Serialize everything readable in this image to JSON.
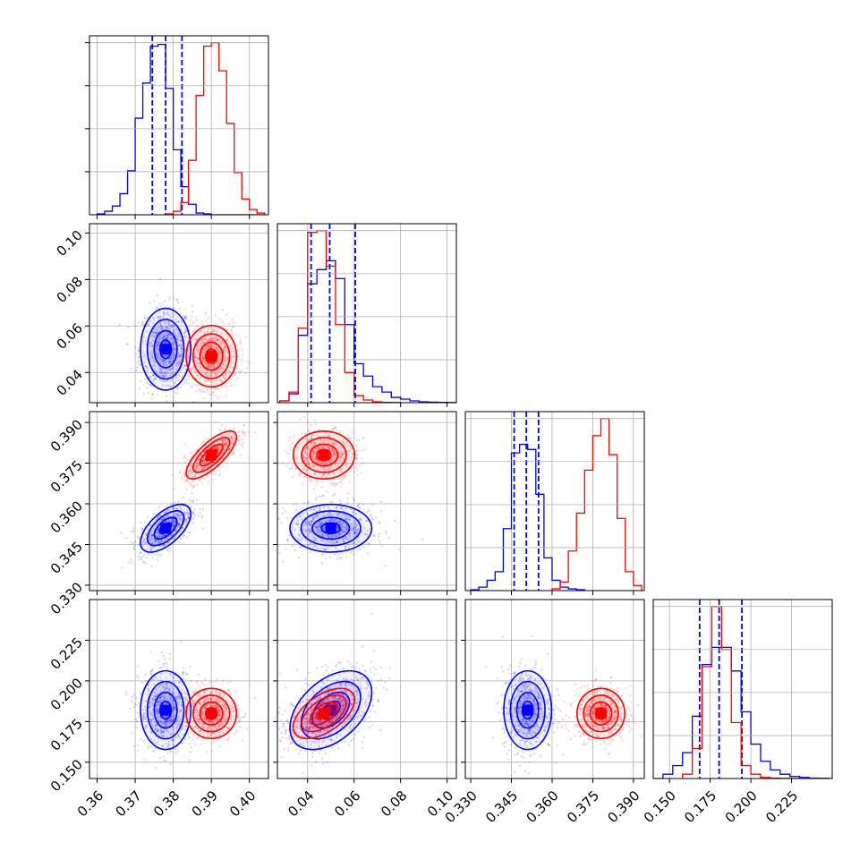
{
  "chart_data": {
    "type": "corner",
    "title": "",
    "grid": true,
    "legend": "none",
    "colors": {
      "series_a": "#0000ff",
      "series_b": "#ff0000"
    },
    "parameters": [
      {
        "index": 0,
        "label": "",
        "range": [
          0.358,
          0.405
        ],
        "ticks": [
          0.36,
          0.37,
          0.38,
          0.39,
          0.4
        ],
        "tick_labels": [
          "0.36",
          "0.37",
          "0.38",
          "0.39",
          "0.40"
        ]
      },
      {
        "index": 1,
        "label": "",
        "range": [
          0.027,
          0.104
        ],
        "ticks": [
          0.04,
          0.06,
          0.08,
          0.1
        ],
        "tick_labels": [
          "0.04",
          "0.06",
          "0.08",
          "0.10"
        ]
      },
      {
        "index": 2,
        "label": "",
        "range": [
          0.328,
          0.394
        ],
        "ticks": [
          0.33,
          0.345,
          0.36,
          0.375,
          0.39
        ],
        "tick_labels": [
          "0.330",
          "0.345",
          "0.360",
          "0.375",
          "0.390"
        ]
      },
      {
        "index": 3,
        "label": "",
        "range": [
          0.14,
          0.25
        ],
        "ticks": [
          0.15,
          0.175,
          0.2,
          0.225
        ],
        "tick_labels": [
          "0.150",
          "0.175",
          "0.200",
          "0.225"
        ]
      }
    ],
    "series": [
      {
        "color": "#0000ff",
        "quantile_lines": true,
        "means": [
          0.378,
          0.05,
          0.351,
          0.182
        ],
        "sigmas": [
          0.003,
          0.008,
          0.004,
          0.011
        ],
        "correlations": {
          "1-0": 0.0,
          "2-0": 0.6,
          "2-1": 0.0,
          "3-0": 0.0,
          "3-1": 0.45,
          "3-2": 0.0
        },
        "quantiles": [
          [
            0.3745,
            0.378,
            0.3823
          ],
          [
            0.0415,
            0.0495,
            0.0605
          ],
          [
            0.346,
            0.3505,
            0.355
          ],
          [
            0.1685,
            0.1805,
            0.1945
          ]
        ],
        "histograms": [
          {
            "edges": [
              0.36,
              0.362,
              0.364,
              0.366,
              0.368,
              0.37,
              0.372,
              0.374,
              0.376,
              0.378,
              0.38,
              0.382,
              0.384,
              0.386,
              0.388,
              0.39,
              0.392,
              0.394,
              0.396,
              0.398,
              0.4,
              0.402,
              0.404
            ],
            "counts": [
              0.005,
              0.02,
              0.05,
              0.12,
              0.25,
              0.55,
              0.75,
              0.96,
              0.97,
              0.72,
              0.37,
              0.16,
              0.06,
              0.01,
              0.005,
              0,
              0,
              0,
              0,
              0,
              0,
              0
            ]
          },
          {
            "edges": [
              0.028,
              0.032,
              0.036,
              0.04,
              0.044,
              0.048,
              0.052,
              0.056,
              0.06,
              0.064,
              0.068,
              0.072,
              0.076,
              0.08,
              0.084,
              0.088,
              0.092,
              0.096,
              0.1,
              0.104
            ],
            "counts": [
              0.01,
              0.05,
              0.38,
              0.67,
              0.75,
              0.8,
              0.7,
              0.44,
              0.22,
              0.15,
              0.09,
              0.06,
              0.03,
              0.02,
              0.01,
              0.005,
              0.003,
              0.002,
              0.001
            ]
          },
          {
            "edges": [
              0.33,
              0.333,
              0.336,
              0.339,
              0.342,
              0.345,
              0.348,
              0.351,
              0.354,
              0.357,
              0.36,
              0.363,
              0.366,
              0.369,
              0.372
            ],
            "counts": [
              0.005,
              0.02,
              0.06,
              0.11,
              0.36,
              0.8,
              0.85,
              0.82,
              0.56,
              0.19,
              0.06,
              0.02,
              0.01,
              0.005
            ]
          },
          {
            "edges": [
              0.14,
              0.146,
              0.152,
              0.158,
              0.164,
              0.17,
              0.176,
              0.182,
              0.188,
              0.194,
              0.2,
              0.206,
              0.212,
              0.218,
              0.224,
              0.23,
              0.236,
              0.242,
              0.248
            ],
            "counts": [
              0.0,
              0.02,
              0.06,
              0.12,
              0.29,
              0.53,
              0.61,
              0.61,
              0.5,
              0.31,
              0.16,
              0.08,
              0.04,
              0.02,
              0.01,
              0.005,
              0.002,
              0.001
            ]
          }
        ]
      },
      {
        "color": "#ff0000",
        "quantile_lines": false,
        "means": [
          0.39,
          0.047,
          0.378,
          0.18
        ],
        "sigmas": [
          0.003,
          0.006,
          0.004,
          0.007
        ],
        "correlations": {
          "1-0": 0.0,
          "2-0": 0.75,
          "2-1": 0.0,
          "3-0": 0.0,
          "3-1": 0.55,
          "3-2": 0.0
        },
        "histograms": [
          {
            "edges": [
              0.378,
              0.38,
              0.382,
              0.384,
              0.386,
              0.388,
              0.39,
              0.392,
              0.394,
              0.396,
              0.398,
              0.4,
              0.402,
              0.404
            ],
            "counts": [
              0.005,
              0.02,
              0.07,
              0.31,
              0.68,
              0.96,
              0.98,
              0.82,
              0.52,
              0.24,
              0.09,
              0.03,
              0.01
            ]
          },
          {
            "edges": [
              0.028,
              0.032,
              0.036,
              0.04,
              0.044,
              0.048,
              0.052,
              0.056,
              0.06,
              0.064,
              0.068,
              0.072,
              0.076,
              0.08
            ],
            "counts": [
              0.01,
              0.06,
              0.42,
              0.96,
              0.97,
              0.77,
              0.44,
              0.17,
              0.04,
              0.015,
              0.005,
              0.002,
              0.001
            ]
          },
          {
            "edges": [
              0.36,
              0.363,
              0.366,
              0.369,
              0.372,
              0.375,
              0.378,
              0.381,
              0.384,
              0.387,
              0.39,
              0.393
            ],
            "counts": [
              0.01,
              0.05,
              0.23,
              0.45,
              0.7,
              0.9,
              1.0,
              0.79,
              0.42,
              0.11,
              0.03
            ]
          },
          {
            "edges": [
              0.158,
              0.164,
              0.17,
              0.176,
              0.182,
              0.188,
              0.194,
              0.2,
              0.206,
              0.212,
              0.218,
              0.224,
              0.23,
              0.236,
              0.242,
              0.248
            ],
            "counts": [
              0.02,
              0.14,
              0.52,
              0.8,
              0.6,
              0.26,
              0.06,
              0.02,
              0.005,
              0.002,
              0.001,
              0.001,
              0.001,
              0.001,
              0.001
            ]
          }
        ]
      }
    ]
  }
}
